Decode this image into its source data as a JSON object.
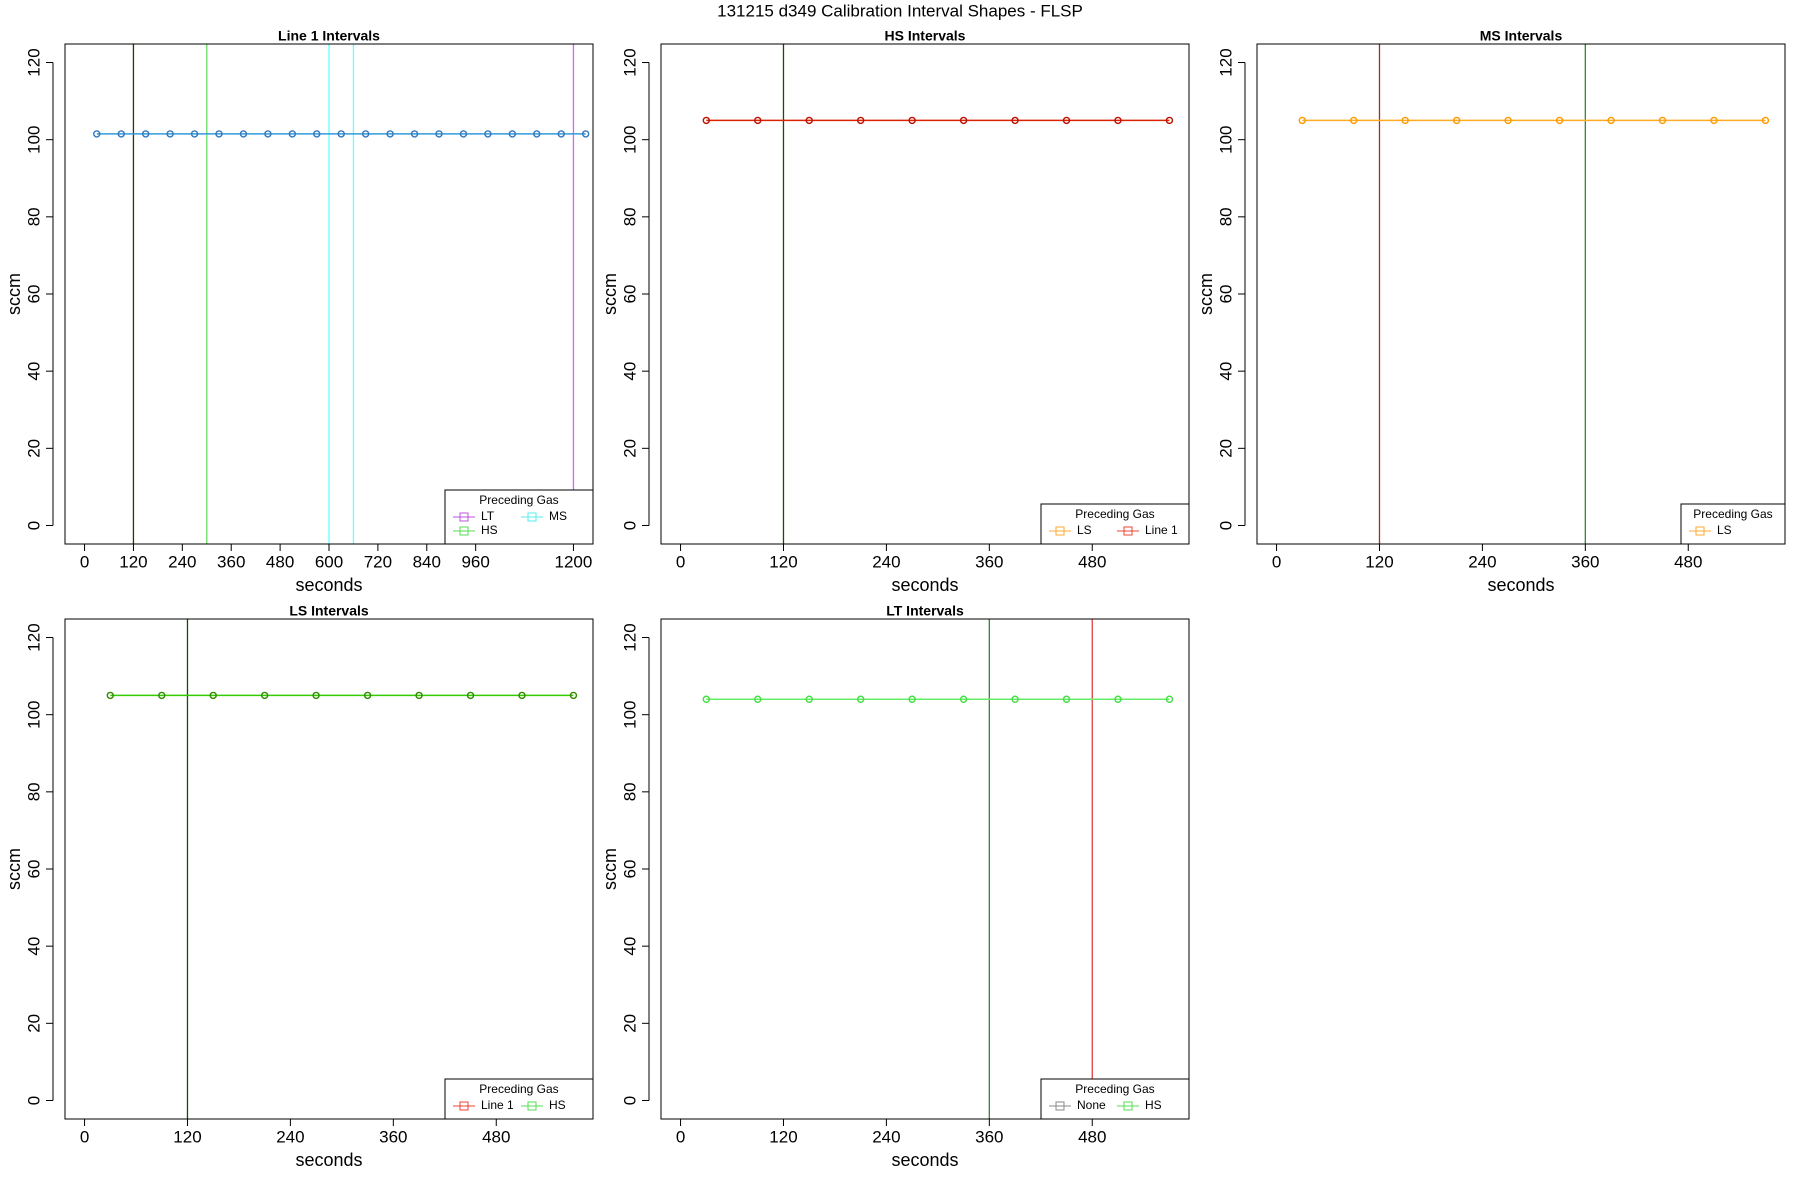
{
  "title": "131215   d349   Calibration Interval Shapes - FLSP",
  "chart_data": [
    {
      "type": "line",
      "title": "Line 1 Intervals",
      "xlabel": "seconds",
      "ylabel": "sccm",
      "x": [
        30,
        90,
        150,
        210,
        270,
        330,
        390,
        450,
        510,
        570,
        630,
        690,
        750,
        810,
        870,
        930,
        990,
        1050,
        1110,
        1170,
        1230
      ],
      "values": [
        101.5,
        101.5,
        101.5,
        101.5,
        101.5,
        101.5,
        101.5,
        101.5,
        101.5,
        101.5,
        101.5,
        101.5,
        101.5,
        101.5,
        101.5,
        101.5,
        101.5,
        101.5,
        101.5,
        101.5,
        101.5
      ],
      "color": "#3399dd",
      "point_color": "#3377bb",
      "xlim": [
        -48,
        1248
      ],
      "xticks": [
        0,
        120,
        240,
        360,
        480,
        600,
        720,
        840,
        960,
        1200
      ],
      "ylim": [
        -4.8,
        124.8
      ],
      "yticks": [
        0,
        20,
        40,
        60,
        80,
        100,
        120
      ],
      "vlines": [
        {
          "x": 120,
          "color": "#333300"
        },
        {
          "x": 300,
          "color": "#66dd66"
        },
        {
          "x": 600,
          "color": "#66ffff"
        },
        {
          "x": 660,
          "color": "#66ffff"
        },
        {
          "x": 1200,
          "color": "#cc66ff"
        }
      ],
      "legend": {
        "title": "Preceding Gas",
        "entries": [
          {
            "name": "LT",
            "color": "#bb55dd"
          },
          {
            "name": "HS",
            "color": "#55dd55"
          },
          {
            "name": "MS",
            "color": "#55eeee"
          }
        ]
      }
    },
    {
      "type": "line",
      "title": "HS Intervals",
      "xlabel": "seconds",
      "ylabel": "sccm",
      "x": [
        30,
        90,
        150,
        210,
        270,
        330,
        390,
        450,
        510,
        570
      ],
      "values": [
        105,
        105,
        105,
        105,
        105,
        105,
        105,
        105,
        105,
        105
      ],
      "color": "#dd2200",
      "point_color": "#bb1100",
      "xlim": [
        -22.8,
        592.8
      ],
      "xticks": [
        0,
        120,
        240,
        360,
        480
      ],
      "ylim": [
        -4.8,
        124.8
      ],
      "yticks": [
        0,
        20,
        40,
        60,
        80,
        100,
        120
      ],
      "vlines": [
        {
          "x": 120,
          "color": "#1a4d00"
        }
      ],
      "legend": {
        "title": "Preceding Gas",
        "entries": [
          {
            "name": "LS",
            "color": "#ffaa33"
          },
          {
            "name": "Line 1",
            "color": "#ee4433"
          }
        ]
      }
    },
    {
      "type": "line",
      "title": "MS Intervals",
      "xlabel": "seconds",
      "ylabel": "sccm",
      "x": [
        30,
        90,
        150,
        210,
        270,
        330,
        390,
        450,
        510,
        570
      ],
      "values": [
        105,
        105,
        105,
        105,
        105,
        105,
        105,
        105,
        105,
        105
      ],
      "color": "#ffaa22",
      "point_color": "#ff9900",
      "xlim": [
        -22.8,
        592.8
      ],
      "xticks": [
        0,
        120,
        240,
        360,
        480
      ],
      "ylim": [
        -4.8,
        124.8
      ],
      "yticks": [
        0,
        20,
        40,
        60,
        80,
        100,
        120
      ],
      "vlines": [
        {
          "x": 120,
          "color": "#993322"
        },
        {
          "x": 360,
          "color": "#338833"
        }
      ],
      "legend": {
        "title": "Preceding Gas",
        "entries": [
          {
            "name": "LS",
            "color": "#ffaa33"
          }
        ]
      }
    },
    {
      "type": "line",
      "title": "LS Intervals",
      "xlabel": "seconds",
      "ylabel": "sccm",
      "x": [
        30,
        90,
        150,
        210,
        270,
        330,
        390,
        450,
        510,
        570
      ],
      "values": [
        105,
        105,
        105,
        105,
        105,
        105,
        105,
        105,
        105,
        105
      ],
      "color": "#33cc00",
      "point_color": "#338800",
      "xlim": [
        -22.8,
        592.8
      ],
      "xticks": [
        0,
        120,
        240,
        360,
        480
      ],
      "ylim": [
        -4.8,
        124.8
      ],
      "yticks": [
        0,
        20,
        40,
        60,
        80,
        100,
        120
      ],
      "vlines": [
        {
          "x": 120,
          "color": "#1a4d00"
        }
      ],
      "legend": {
        "title": "Preceding Gas",
        "entries": [
          {
            "name": "Line 1",
            "color": "#ee4433"
          },
          {
            "name": "HS",
            "color": "#55dd55"
          }
        ]
      }
    },
    {
      "type": "line",
      "title": "LT Intervals",
      "xlabel": "seconds",
      "ylabel": "sccm",
      "x": [
        30,
        90,
        150,
        210,
        270,
        330,
        390,
        450,
        510,
        570
      ],
      "values": [
        104,
        104,
        104,
        104,
        104,
        104,
        104,
        104,
        104,
        104
      ],
      "color": "#66ee66",
      "point_color": "#44dd44",
      "xlim": [
        -22.8,
        592.8
      ],
      "xticks": [
        0,
        120,
        240,
        360,
        480
      ],
      "ylim": [
        -4.8,
        124.8
      ],
      "yticks": [
        0,
        20,
        40,
        60,
        80,
        100,
        120
      ],
      "vlines": [
        {
          "x": 360,
          "color": "#338833"
        },
        {
          "x": 480,
          "color": "#dd4444"
        }
      ],
      "legend": {
        "title": "Preceding Gas",
        "entries": [
          {
            "name": "None",
            "color": "#888888"
          },
          {
            "name": "HS",
            "color": "#55dd55"
          }
        ]
      }
    }
  ]
}
